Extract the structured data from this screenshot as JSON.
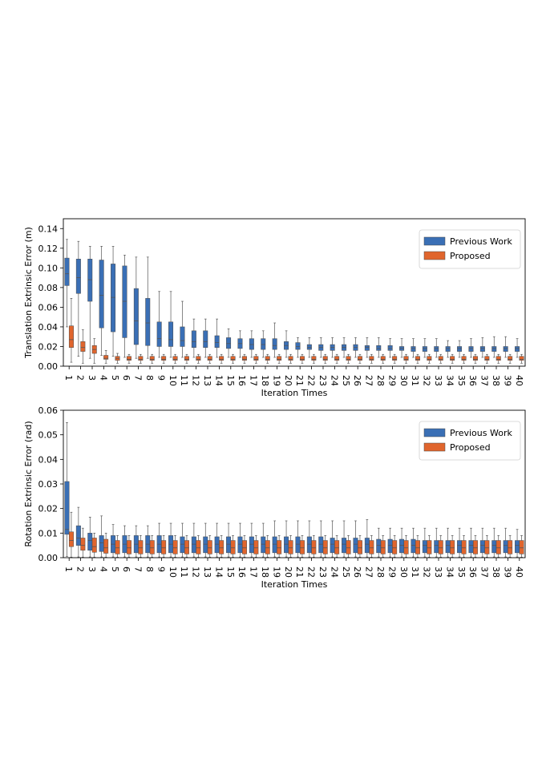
{
  "colors": {
    "previous": "#3a6fb5",
    "proposed": "#e0652d",
    "whisker": "#555555"
  },
  "chart_data": [
    {
      "type": "box",
      "xlabel": "Iteration Times",
      "ylabel": "Translation Extrinsic Error (m)",
      "ylim": [
        0,
        0.15
      ],
      "yticks": [
        "0.00",
        "0.02",
        "0.04",
        "0.06",
        "0.08",
        "0.10",
        "0.12",
        "0.14"
      ],
      "legend_position": "upper right",
      "categories": [
        "1",
        "2",
        "3",
        "4",
        "5",
        "6",
        "7",
        "8",
        "9",
        "10",
        "11",
        "12",
        "13",
        "14",
        "15",
        "16",
        "17",
        "18",
        "19",
        "20",
        "21",
        "22",
        "23",
        "24",
        "25",
        "26",
        "27",
        "28",
        "29",
        "30",
        "31",
        "32",
        "33",
        "34",
        "35",
        "36",
        "37",
        "38",
        "39",
        "40"
      ],
      "series": [
        {
          "name": "Previous Work",
          "q1": [
            0.082,
            0.074,
            0.066,
            0.039,
            0.035,
            0.029,
            0.022,
            0.021,
            0.02,
            0.02,
            0.02,
            0.019,
            0.019,
            0.019,
            0.018,
            0.018,
            0.017,
            0.017,
            0.017,
            0.017,
            0.017,
            0.017,
            0.016,
            0.016,
            0.016,
            0.016,
            0.016,
            0.016,
            0.016,
            0.016,
            0.015,
            0.015,
            0.015,
            0.015,
            0.015,
            0.015,
            0.015,
            0.015,
            0.015,
            0.015
          ],
          "med": [
            0.094,
            0.09,
            0.088,
            0.072,
            0.07,
            0.066,
            0.046,
            0.044,
            0.028,
            0.027,
            0.026,
            0.025,
            0.025,
            0.024,
            0.023,
            0.023,
            0.022,
            0.022,
            0.021,
            0.021,
            0.02,
            0.019,
            0.019,
            0.019,
            0.019,
            0.019,
            0.019,
            0.018,
            0.018,
            0.018,
            0.018,
            0.018,
            0.018,
            0.018,
            0.018,
            0.018,
            0.018,
            0.018,
            0.018,
            0.018
          ],
          "q3": [
            0.11,
            0.109,
            0.109,
            0.108,
            0.104,
            0.102,
            0.079,
            0.069,
            0.045,
            0.045,
            0.04,
            0.036,
            0.036,
            0.031,
            0.029,
            0.028,
            0.028,
            0.028,
            0.028,
            0.025,
            0.024,
            0.022,
            0.022,
            0.022,
            0.022,
            0.022,
            0.021,
            0.021,
            0.021,
            0.02,
            0.02,
            0.02,
            0.02,
            0.02,
            0.02,
            0.02,
            0.02,
            0.02,
            0.02,
            0.02
          ],
          "wlo": [
            0.04,
            0.01,
            0.008,
            0.011,
            0.01,
            0.009,
            0.008,
            0.008,
            0.009,
            0.009,
            0.009,
            0.009,
            0.009,
            0.009,
            0.009,
            0.009,
            0.009,
            0.009,
            0.009,
            0.009,
            0.009,
            0.009,
            0.009,
            0.009,
            0.009,
            0.009,
            0.009,
            0.009,
            0.009,
            0.009,
            0.009,
            0.009,
            0.009,
            0.009,
            0.009,
            0.009,
            0.009,
            0.009,
            0.009,
            0.009
          ],
          "whi": [
            0.129,
            0.127,
            0.122,
            0.122,
            0.122,
            0.113,
            0.111,
            0.111,
            0.076,
            0.076,
            0.066,
            0.048,
            0.048,
            0.048,
            0.038,
            0.036,
            0.036,
            0.036,
            0.044,
            0.036,
            0.029,
            0.029,
            0.029,
            0.029,
            0.029,
            0.029,
            0.029,
            0.029,
            0.028,
            0.028,
            0.028,
            0.028,
            0.028,
            0.026,
            0.026,
            0.028,
            0.029,
            0.03,
            0.03,
            0.028
          ]
        },
        {
          "name": "Proposed",
          "q1": [
            0.019,
            0.015,
            0.013,
            0.007,
            0.006,
            0.006,
            0.006,
            0.006,
            0.006,
            0.006,
            0.006,
            0.006,
            0.006,
            0.006,
            0.006,
            0.006,
            0.006,
            0.006,
            0.006,
            0.006,
            0.006,
            0.006,
            0.006,
            0.006,
            0.006,
            0.006,
            0.006,
            0.006,
            0.006,
            0.006,
            0.006,
            0.006,
            0.006,
            0.006,
            0.006,
            0.006,
            0.006,
            0.006,
            0.006,
            0.006
          ],
          "med": [
            0.027,
            0.019,
            0.017,
            0.008,
            0.008,
            0.007,
            0.007,
            0.007,
            0.007,
            0.007,
            0.007,
            0.007,
            0.007,
            0.007,
            0.007,
            0.007,
            0.007,
            0.007,
            0.007,
            0.007,
            0.007,
            0.007,
            0.007,
            0.007,
            0.007,
            0.007,
            0.007,
            0.007,
            0.007,
            0.007,
            0.007,
            0.007,
            0.007,
            0.007,
            0.007,
            0.007,
            0.007,
            0.007,
            0.007,
            0.007
          ],
          "q3": [
            0.041,
            0.025,
            0.021,
            0.011,
            0.01,
            0.01,
            0.01,
            0.01,
            0.01,
            0.01,
            0.01,
            0.01,
            0.01,
            0.01,
            0.01,
            0.01,
            0.01,
            0.01,
            0.01,
            0.01,
            0.01,
            0.01,
            0.01,
            0.01,
            0.01,
            0.01,
            0.01,
            0.01,
            0.01,
            0.01,
            0.01,
            0.01,
            0.01,
            0.01,
            0.01,
            0.01,
            0.01,
            0.01,
            0.01,
            0.01
          ],
          "wlo": [
            0.004,
            0.003,
            0.003,
            0.003,
            0.003,
            0.003,
            0.003,
            0.003,
            0.003,
            0.003,
            0.003,
            0.003,
            0.003,
            0.003,
            0.003,
            0.003,
            0.003,
            0.003,
            0.003,
            0.003,
            0.003,
            0.003,
            0.003,
            0.003,
            0.003,
            0.003,
            0.003,
            0.003,
            0.003,
            0.003,
            0.003,
            0.003,
            0.003,
            0.003,
            0.003,
            0.003,
            0.003,
            0.003,
            0.003,
            0.003
          ],
          "whi": [
            0.069,
            0.037,
            0.028,
            0.016,
            0.013,
            0.012,
            0.012,
            0.012,
            0.012,
            0.012,
            0.012,
            0.012,
            0.012,
            0.012,
            0.012,
            0.012,
            0.012,
            0.012,
            0.012,
            0.012,
            0.012,
            0.012,
            0.012,
            0.012,
            0.012,
            0.012,
            0.012,
            0.012,
            0.012,
            0.012,
            0.012,
            0.012,
            0.012,
            0.012,
            0.012,
            0.012,
            0.012,
            0.012,
            0.012,
            0.012
          ]
        }
      ]
    },
    {
      "type": "box",
      "xlabel": "Iteration Times",
      "ylabel": "Rotation Extrinsic Error (rad)",
      "ylim": [
        0,
        0.06
      ],
      "yticks": [
        "0.00",
        "0.01",
        "0.02",
        "0.03",
        "0.04",
        "0.05",
        "0.06"
      ],
      "legend_position": "upper right",
      "categories": [
        "1",
        "2",
        "3",
        "4",
        "5",
        "6",
        "7",
        "8",
        "9",
        "10",
        "11",
        "12",
        "13",
        "14",
        "15",
        "16",
        "17",
        "18",
        "19",
        "20",
        "21",
        "22",
        "23",
        "24",
        "25",
        "26",
        "27",
        "28",
        "29",
        "30",
        "31",
        "32",
        "33",
        "34",
        "35",
        "36",
        "37",
        "38",
        "39",
        "40"
      ],
      "series": [
        {
          "name": "Previous Work",
          "q1": [
            0.0095,
            0.005,
            0.003,
            0.0025,
            0.002,
            0.002,
            0.002,
            0.002,
            0.002,
            0.002,
            0.002,
            0.002,
            0.002,
            0.002,
            0.002,
            0.002,
            0.002,
            0.002,
            0.002,
            0.002,
            0.002,
            0.002,
            0.002,
            0.002,
            0.002,
            0.002,
            0.002,
            0.002,
            0.002,
            0.002,
            0.002,
            0.002,
            0.002,
            0.002,
            0.002,
            0.002,
            0.002,
            0.002,
            0.002,
            0.002
          ],
          "med": [
            0.0115,
            0.008,
            0.007,
            0.006,
            0.0055,
            0.0055,
            0.0055,
            0.0055,
            0.0055,
            0.0055,
            0.0055,
            0.0055,
            0.0055,
            0.0055,
            0.0055,
            0.0055,
            0.0055,
            0.0055,
            0.0055,
            0.0055,
            0.0055,
            0.0055,
            0.0055,
            0.0055,
            0.0055,
            0.0055,
            0.0055,
            0.005,
            0.005,
            0.005,
            0.005,
            0.005,
            0.005,
            0.005,
            0.005,
            0.005,
            0.005,
            0.005,
            0.005,
            0.005
          ],
          "q3": [
            0.031,
            0.013,
            0.01,
            0.009,
            0.009,
            0.009,
            0.009,
            0.009,
            0.009,
            0.009,
            0.0085,
            0.0085,
            0.0085,
            0.0085,
            0.0085,
            0.0085,
            0.0085,
            0.0085,
            0.0085,
            0.0085,
            0.0085,
            0.0085,
            0.0085,
            0.008,
            0.008,
            0.008,
            0.008,
            0.0075,
            0.0075,
            0.0075,
            0.0075,
            0.007,
            0.007,
            0.007,
            0.007,
            0.007,
            0.007,
            0.007,
            0.007,
            0.007
          ],
          "wlo": [
            0.0005,
            0.0003,
            0.0003,
            0.0003,
            0.0003,
            0.0003,
            0.0003,
            0.0003,
            0.0003,
            0.0003,
            0.0003,
            0.0003,
            0.0003,
            0.0003,
            0.0003,
            0.0003,
            0.0003,
            0.0003,
            0.0003,
            0.0003,
            0.0003,
            0.0003,
            0.0003,
            0.0003,
            0.0003,
            0.0003,
            0.0003,
            0.0003,
            0.0003,
            0.0003,
            0.0003,
            0.0003,
            0.0003,
            0.0003,
            0.0003,
            0.0003,
            0.0003,
            0.0003,
            0.0003,
            0.0003
          ],
          "whi": [
            0.055,
            0.0205,
            0.0165,
            0.017,
            0.0135,
            0.013,
            0.013,
            0.013,
            0.014,
            0.014,
            0.014,
            0.014,
            0.014,
            0.014,
            0.014,
            0.014,
            0.014,
            0.014,
            0.015,
            0.015,
            0.015,
            0.015,
            0.015,
            0.015,
            0.015,
            0.015,
            0.0155,
            0.012,
            0.012,
            0.012,
            0.012,
            0.012,
            0.012,
            0.012,
            0.012,
            0.012,
            0.012,
            0.012,
            0.012,
            0.0115
          ]
        },
        {
          "name": "Proposed",
          "q1": [
            0.0045,
            0.003,
            0.0022,
            0.0018,
            0.0015,
            0.0015,
            0.0015,
            0.0015,
            0.0015,
            0.0015,
            0.0015,
            0.0015,
            0.0015,
            0.0015,
            0.0015,
            0.0015,
            0.0015,
            0.0015,
            0.0015,
            0.0015,
            0.0015,
            0.0015,
            0.0015,
            0.0015,
            0.0015,
            0.0015,
            0.0015,
            0.0015,
            0.0015,
            0.0015,
            0.0015,
            0.0015,
            0.0015,
            0.0015,
            0.0015,
            0.0015,
            0.0015,
            0.0015,
            0.0015,
            0.0015
          ],
          "med": [
            0.007,
            0.005,
            0.0045,
            0.004,
            0.004,
            0.004,
            0.004,
            0.004,
            0.004,
            0.004,
            0.004,
            0.004,
            0.004,
            0.004,
            0.004,
            0.004,
            0.004,
            0.004,
            0.004,
            0.004,
            0.004,
            0.004,
            0.004,
            0.004,
            0.004,
            0.004,
            0.004,
            0.004,
            0.004,
            0.004,
            0.004,
            0.004,
            0.004,
            0.004,
            0.004,
            0.004,
            0.004,
            0.004,
            0.004,
            0.004
          ],
          "q3": [
            0.0105,
            0.008,
            0.008,
            0.0075,
            0.007,
            0.007,
            0.007,
            0.007,
            0.007,
            0.007,
            0.007,
            0.007,
            0.007,
            0.007,
            0.007,
            0.007,
            0.007,
            0.007,
            0.007,
            0.007,
            0.007,
            0.007,
            0.007,
            0.007,
            0.007,
            0.007,
            0.007,
            0.007,
            0.007,
            0.007,
            0.007,
            0.007,
            0.007,
            0.007,
            0.007,
            0.007,
            0.007,
            0.007,
            0.007,
            0.007
          ],
          "wlo": [
            0.0002,
            0.0002,
            0.0002,
            0.0002,
            0.0002,
            0.0002,
            0.0002,
            0.0002,
            0.0002,
            0.0002,
            0.0002,
            0.0002,
            0.0002,
            0.0002,
            0.0002,
            0.0002,
            0.0002,
            0.0002,
            0.0002,
            0.0002,
            0.0002,
            0.0002,
            0.0002,
            0.0002,
            0.0002,
            0.0002,
            0.0002,
            0.0002,
            0.0002,
            0.0002,
            0.0002,
            0.0002,
            0.0002,
            0.0002,
            0.0002,
            0.0002,
            0.0002,
            0.0002,
            0.0002,
            0.0002
          ],
          "whi": [
            0.0185,
            0.012,
            0.01,
            0.01,
            0.009,
            0.009,
            0.009,
            0.009,
            0.009,
            0.009,
            0.009,
            0.009,
            0.009,
            0.009,
            0.009,
            0.009,
            0.009,
            0.009,
            0.009,
            0.009,
            0.009,
            0.009,
            0.009,
            0.009,
            0.009,
            0.009,
            0.009,
            0.009,
            0.009,
            0.009,
            0.009,
            0.009,
            0.009,
            0.009,
            0.009,
            0.009,
            0.009,
            0.009,
            0.009,
            0.009
          ]
        }
      ]
    }
  ]
}
